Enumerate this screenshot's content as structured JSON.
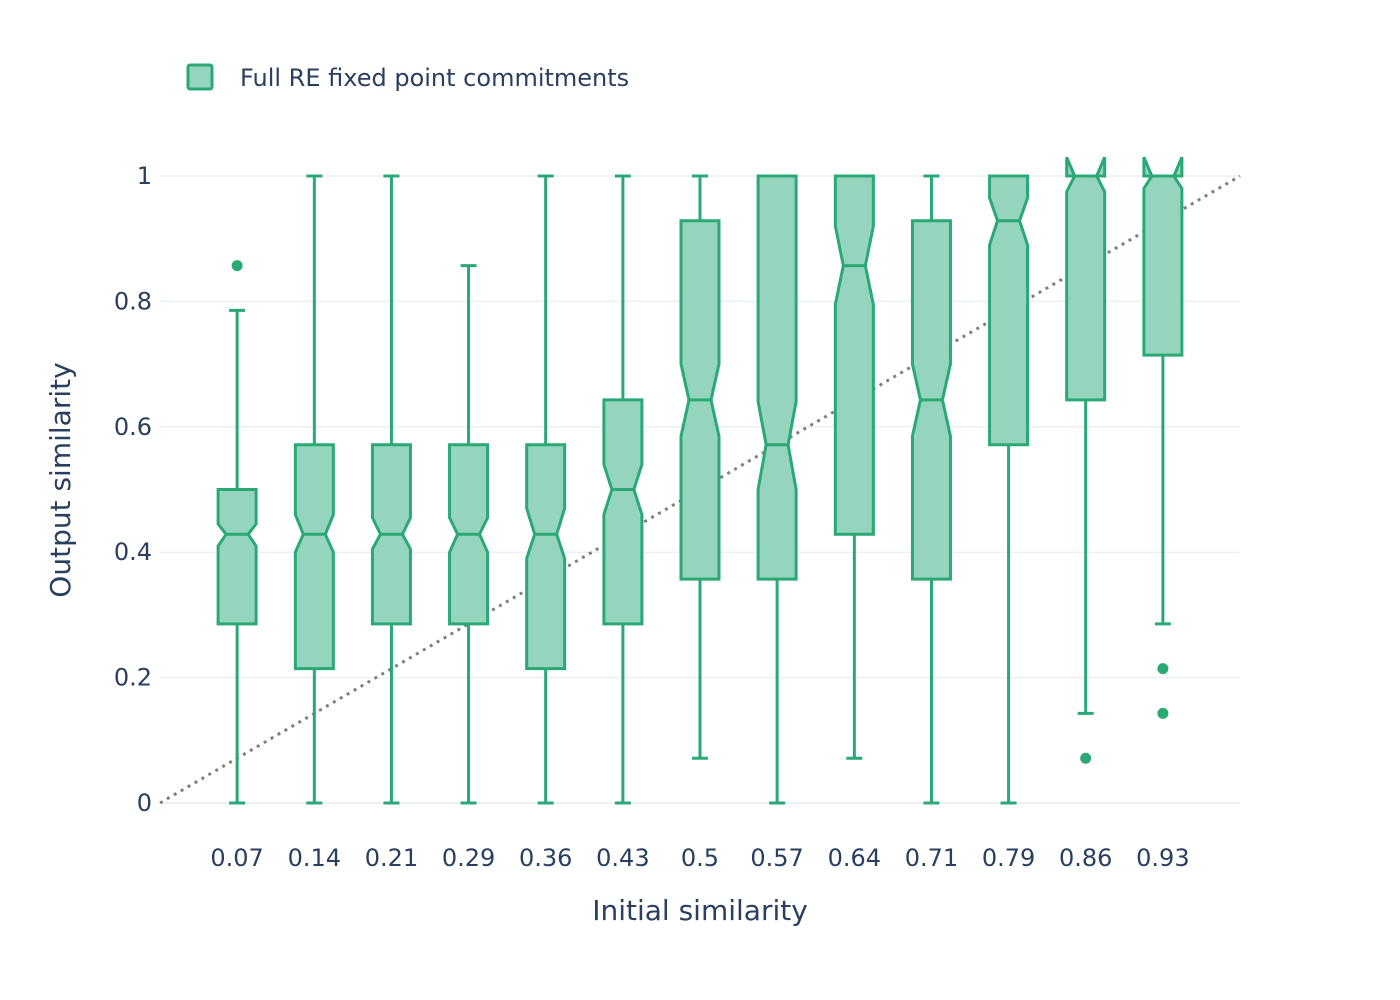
{
  "chart_data": {
    "type": "box",
    "notched": true,
    "xlabel": "Initial similarity",
    "ylabel": "Output similarity",
    "ylim": [
      0,
      1.0
    ],
    "y_ticks": [
      0,
      0.2,
      0.4,
      0.6,
      0.8,
      1
    ],
    "y_tick_labels": [
      "0",
      "0.2",
      "0.4",
      "0.6",
      "0.8",
      "1"
    ],
    "grid": true,
    "legend": {
      "position": "top-left",
      "entries": [
        "Full RE fixed point commitments"
      ]
    },
    "colors": {
      "line": "#2aa876",
      "fill": "#95d5bd",
      "grid": "#ebf0f8",
      "diagonal": "#808080",
      "text": "#2a3f5f"
    },
    "reference_line": {
      "style": "dotted",
      "from": [
        0,
        0
      ],
      "to": [
        1,
        1
      ]
    },
    "series": [
      {
        "name": "Full RE fixed point commitments",
        "boxes": [
          {
            "x": 0.0714,
            "label": "0.07",
            "lower_whisker": 0.0,
            "q1": 0.2857,
            "median": 0.4286,
            "q3": 0.5,
            "upper_whisker": 0.7857,
            "notch_low": 0.41,
            "notch_high": 0.445,
            "outliers": [
              0.8571
            ]
          },
          {
            "x": 0.1429,
            "label": "0.14",
            "lower_whisker": 0.0,
            "q1": 0.2143,
            "median": 0.4286,
            "q3": 0.5714,
            "upper_whisker": 1.0,
            "notch_low": 0.4,
            "notch_high": 0.46,
            "outliers": []
          },
          {
            "x": 0.2143,
            "label": "0.21",
            "lower_whisker": 0.0,
            "q1": 0.2857,
            "median": 0.4286,
            "q3": 0.5714,
            "upper_whisker": 1.0,
            "notch_low": 0.405,
            "notch_high": 0.455,
            "outliers": []
          },
          {
            "x": 0.2857,
            "label": "0.29",
            "lower_whisker": 0.0,
            "q1": 0.2857,
            "median": 0.4286,
            "q3": 0.5714,
            "upper_whisker": 0.8571,
            "notch_low": 0.4,
            "notch_high": 0.455,
            "outliers": []
          },
          {
            "x": 0.3571,
            "label": "0.36",
            "lower_whisker": 0.0,
            "q1": 0.2143,
            "median": 0.4286,
            "q3": 0.5714,
            "upper_whisker": 1.0,
            "notch_low": 0.39,
            "notch_high": 0.47,
            "outliers": []
          },
          {
            "x": 0.4286,
            "label": "0.43",
            "lower_whisker": 0.0,
            "q1": 0.2857,
            "median": 0.5,
            "q3": 0.6429,
            "upper_whisker": 1.0,
            "notch_low": 0.46,
            "notch_high": 0.54,
            "outliers": []
          },
          {
            "x": 0.5,
            "label": "0.5",
            "lower_whisker": 0.0714,
            "q1": 0.3571,
            "median": 0.6429,
            "q3": 0.9286,
            "upper_whisker": 1.0,
            "notch_low": 0.585,
            "notch_high": 0.7,
            "outliers": []
          },
          {
            "x": 0.5714,
            "label": "0.57",
            "lower_whisker": 0.0,
            "q1": 0.3571,
            "median": 0.5714,
            "q3": 1.0,
            "upper_whisker": 1.0,
            "notch_low": 0.5,
            "notch_high": 0.64,
            "outliers": []
          },
          {
            "x": 0.6429,
            "label": "0.64",
            "lower_whisker": 0.0714,
            "q1": 0.4286,
            "median": 0.8571,
            "q3": 1.0,
            "upper_whisker": 1.0,
            "notch_low": 0.795,
            "notch_high": 0.92,
            "outliers": []
          },
          {
            "x": 0.7143,
            "label": "0.71",
            "lower_whisker": 0.0,
            "q1": 0.3571,
            "median": 0.6429,
            "q3": 0.9286,
            "upper_whisker": 1.0,
            "notch_low": 0.585,
            "notch_high": 0.7,
            "outliers": []
          },
          {
            "x": 0.7857,
            "label": "0.79",
            "lower_whisker": 0.0,
            "q1": 0.5714,
            "median": 0.9286,
            "q3": 1.0,
            "upper_whisker": 1.0,
            "notch_low": 0.89,
            "notch_high": 0.965,
            "outliers": []
          },
          {
            "x": 0.8571,
            "label": "0.86",
            "lower_whisker": 0.1429,
            "q1": 0.6429,
            "median": 1.0,
            "q3": 1.0,
            "upper_whisker": 1.0,
            "notch_low": 0.975,
            "notch_high": 1.03,
            "outliers": [
              0.0714
            ]
          },
          {
            "x": 0.9286,
            "label": "0.93",
            "lower_whisker": 0.2857,
            "q1": 0.7143,
            "median": 1.0,
            "q3": 1.0,
            "upper_whisker": 1.0,
            "notch_low": 0.98,
            "notch_high": 1.03,
            "outliers": [
              0.2143,
              0.1429
            ]
          }
        ]
      }
    ]
  }
}
